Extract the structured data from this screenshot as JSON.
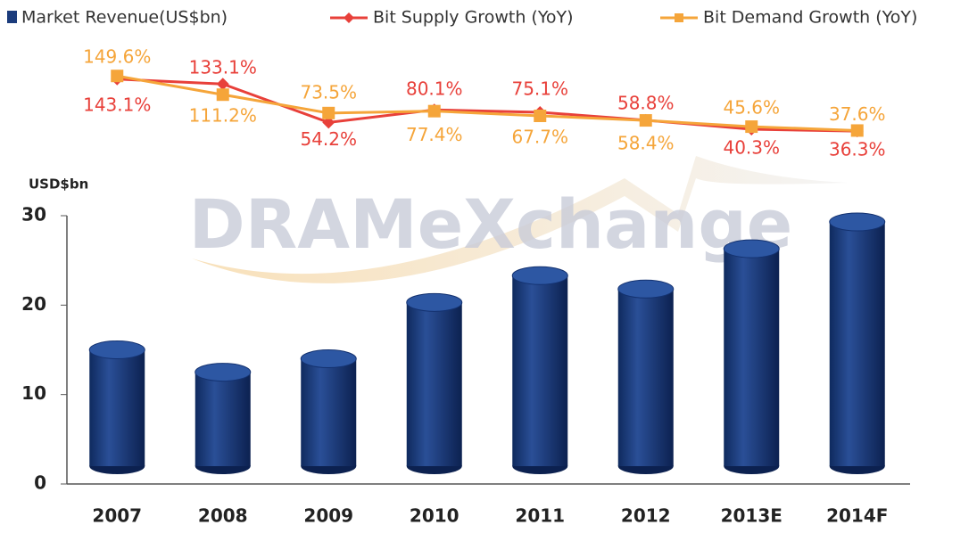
{
  "chart_data": {
    "type": "bar",
    "watermark": "DRAMeXchange",
    "y_label": "USD$bn",
    "categories": [
      "2007",
      "2008",
      "2009",
      "2010",
      "2011",
      "2012",
      "2013E",
      "2014F"
    ],
    "ylim": [
      0,
      30
    ],
    "yticks": [
      0,
      10,
      20,
      30
    ],
    "y2lim": [
      0,
      150
    ],
    "series": [
      {
        "name": "Market Revenue(US$bn)",
        "type": "bar",
        "color": "#1b3c7c",
        "values": [
          15.0,
          12.5,
          14.0,
          20.3,
          23.3,
          21.8,
          26.3,
          29.3
        ]
      },
      {
        "name": "Bit Supply  Growth (YoY)",
        "type": "line",
        "axis": "y2",
        "color": "#e8403a",
        "values": [
          143.1,
          133.1,
          54.2,
          80.1,
          75.1,
          58.8,
          40.3,
          36.3
        ],
        "value_labels": [
          "143.1%",
          "133.1%",
          "54.2%",
          "80.1%",
          "75.1%",
          "58.8%",
          "40.3%",
          "36.3%"
        ]
      },
      {
        "name": "Bit Demand Growth (YoY)",
        "type": "line",
        "axis": "y2",
        "color": "#f5a53a",
        "values": [
          149.6,
          111.2,
          73.5,
          77.4,
          67.7,
          58.4,
          45.6,
          37.6
        ],
        "value_labels": [
          "149.6%",
          "111.2%",
          "73.5%",
          "77.4%",
          "67.7%",
          "58.4%",
          "45.6%",
          "37.6%"
        ]
      }
    ]
  }
}
